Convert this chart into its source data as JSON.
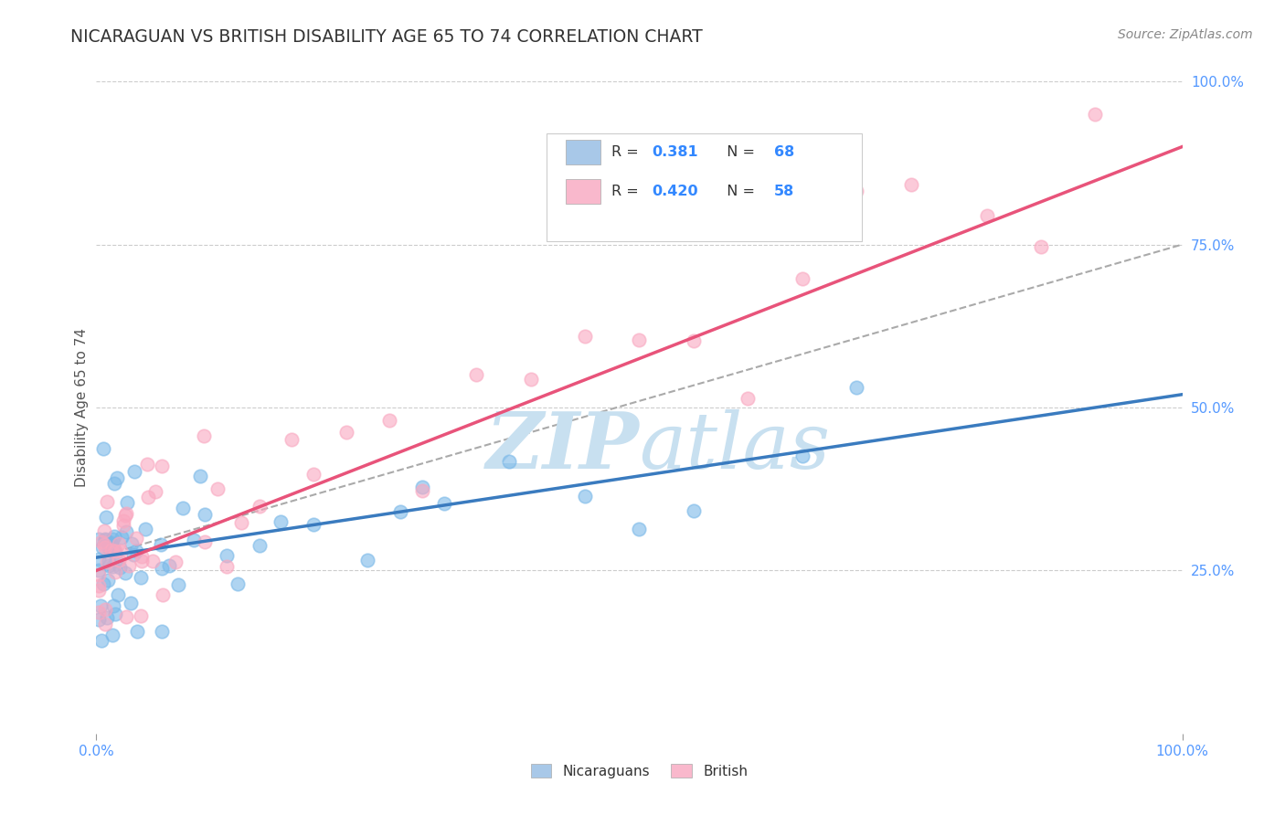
{
  "title": "NICARAGUAN VS BRITISH DISABILITY AGE 65 TO 74 CORRELATION CHART",
  "source": "Source: ZipAtlas.com",
  "ylabel": "Disability Age 65 to 74",
  "xlim": [
    0.0,
    1.0
  ],
  "ylim": [
    0.0,
    1.0
  ],
  "blue_color": "#7ab8e8",
  "pink_color": "#f9a8c0",
  "blue_line_color": "#3a7bbf",
  "pink_line_color": "#e8537a",
  "dashed_line_color": "#aaaaaa",
  "grid_color": "#cccccc",
  "watermark_text": "ZIPatlas",
  "watermark_color": "#c8e0f0",
  "background_color": "#ffffff",
  "title_color": "#333333",
  "axis_label_color": "#555555",
  "tick_color": "#5599ff",
  "source_color": "#888888",
  "legend_box_color": "#eeeeee",
  "legend_entries": [
    {
      "color": "#a8c8e8",
      "r": "0.381",
      "n": "68"
    },
    {
      "color": "#f9b8cc",
      "r": "0.420",
      "n": "58"
    }
  ],
  "blue_intercept": 0.27,
  "blue_slope": 0.25,
  "pink_intercept": 0.25,
  "pink_slope": 0.65,
  "dashed_intercept": 0.27,
  "dashed_slope": 0.48
}
